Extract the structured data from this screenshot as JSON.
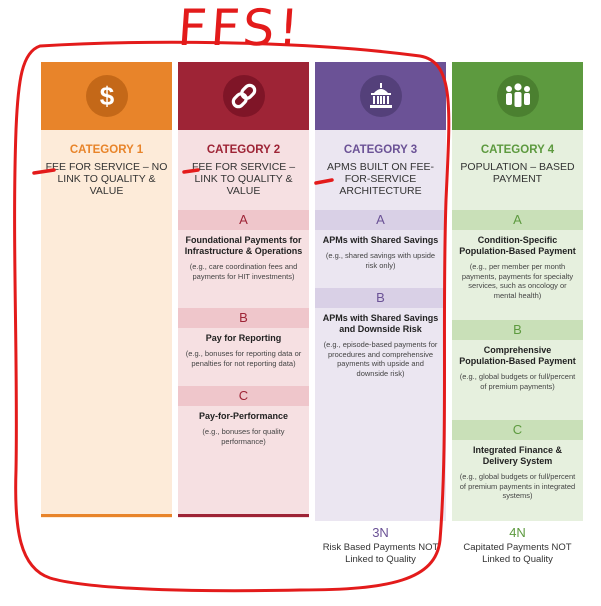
{
  "annotation": {
    "text": "FFS!",
    "color": "#e31b1b"
  },
  "columns": [
    {
      "category": "CATEGORY 1",
      "title": "FEE FOR SERVICE – NO LINK TO QUALITY & VALUE",
      "icon": "dollar-icon",
      "color": "#e8842a",
      "subcategories": []
    },
    {
      "category": "CATEGORY 2",
      "title": "FEE FOR SERVICE – LINK TO QUALITY & VALUE",
      "icon": "chain-link-icon",
      "color": "#9e2436",
      "subcategories": [
        {
          "letter": "A",
          "title": "Foundational Payments for Infrastructure & Operations",
          "desc": "(e.g., care coordination fees and payments for HIT investments)"
        },
        {
          "letter": "B",
          "title": "Pay for Reporting",
          "desc": "(e.g., bonuses for reporting data or penalties for not reporting data)"
        },
        {
          "letter": "C",
          "title": "Pay-for-Performance",
          "desc": "(e.g., bonuses for quality performance)"
        }
      ]
    },
    {
      "category": "CATEGORY 3",
      "title": "APMS BUILT ON FEE-FOR-SERVICE ARCHITECTURE",
      "icon": "government-building-icon",
      "color": "#6b5296",
      "subcategories": [
        {
          "letter": "A",
          "title": "APMs with Shared Savings",
          "desc": "(e.g., shared savings with upside risk only)"
        },
        {
          "letter": "B",
          "title": "APMs with Shared Savings and Downside Risk",
          "desc": "(e.g., episode-based payments for procedures and comprehensive payments with upside and downside risk)"
        }
      ],
      "footer": {
        "code": "3N",
        "text": "Risk Based Payments NOT Linked to Quality"
      }
    },
    {
      "category": "CATEGORY 4",
      "title": "POPULATION – BASED PAYMENT",
      "icon": "people-group-icon",
      "color": "#5d9a3f",
      "subcategories": [
        {
          "letter": "A",
          "title": "Condition-Specific Population-Based Payment",
          "desc": "(e.g., per member per month payments, payments for specialty services, such as oncology or mental health)"
        },
        {
          "letter": "B",
          "title": "Comprehensive Population-Based Payment",
          "desc": "(e.g., global budgets or full/percent of premium payments)"
        },
        {
          "letter": "C",
          "title": "Integrated Finance & Delivery System",
          "desc": "(e.g., global budgets or full/percent of premium payments in integrated systems)"
        }
      ],
      "footer": {
        "code": "4N",
        "text": "Capitated Payments NOT Linked to Quality"
      }
    }
  ]
}
